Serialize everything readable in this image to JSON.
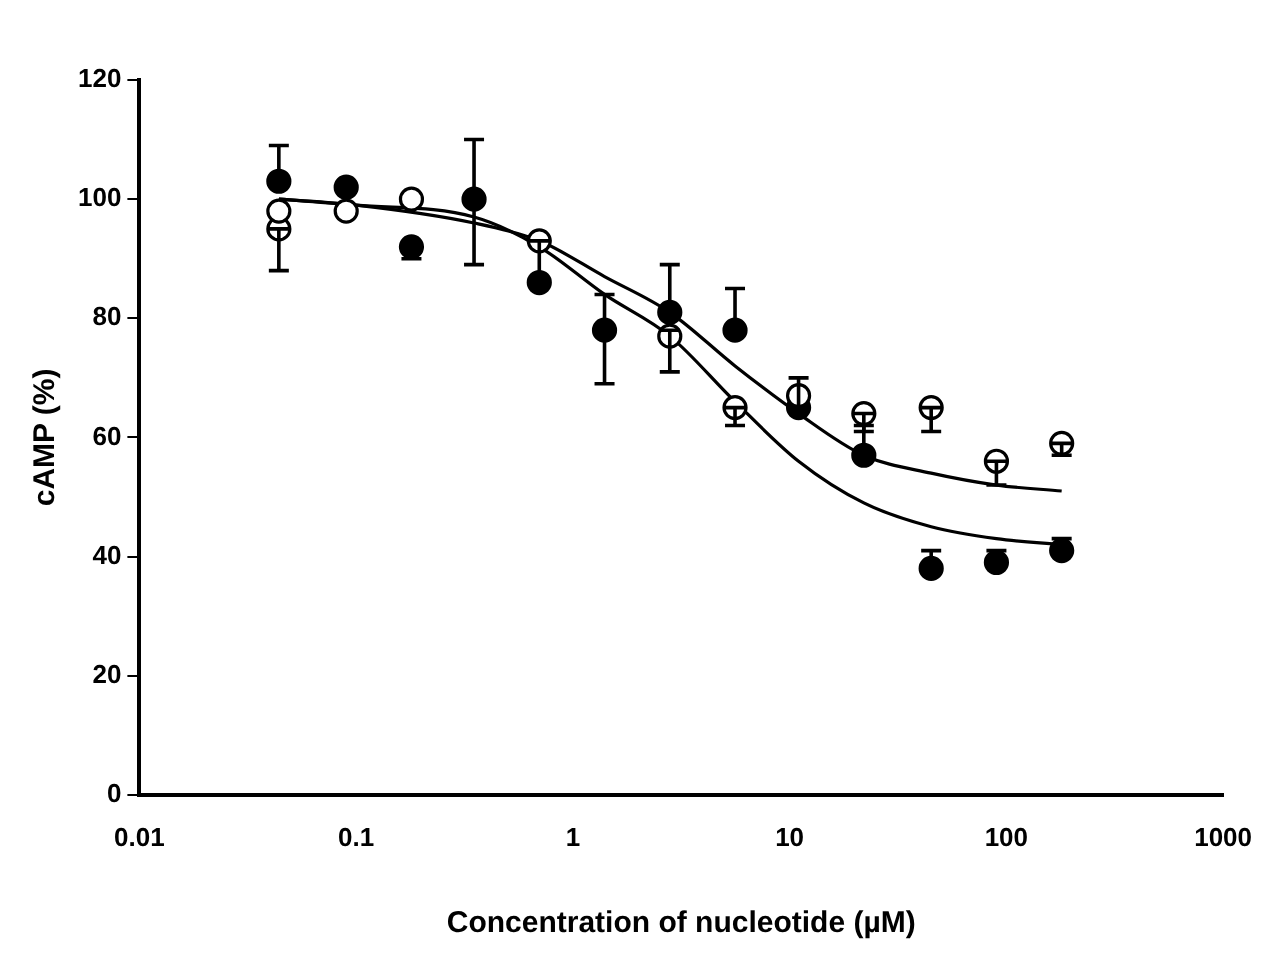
{
  "chart_data": {
    "type": "scatter",
    "xlabel": "Concentration of nucleotide (µM)",
    "ylabel": "cAMP (%)",
    "log": "x",
    "xlim": [
      0.01,
      1000
    ],
    "xticks": [
      0.01,
      0.1,
      1,
      10,
      100,
      1000
    ],
    "ylim": [
      0,
      120
    ],
    "yticks": [
      0,
      20,
      40,
      60,
      80,
      100,
      120
    ],
    "grid": false,
    "legend": false,
    "marker": "circle",
    "series": [
      {
        "type": "line",
        "color": "#000000",
        "marker": "none",
        "x": [
          0.044,
          0.1,
          0.35,
          0.7,
          1.4,
          2.8,
          5.6,
          11,
          22,
          45,
          90,
          180
        ],
        "values": [
          100,
          99,
          96,
          93,
          87,
          81,
          72,
          64,
          57,
          54,
          52,
          51
        ]
      },
      {
        "type": "line",
        "color": "#000000",
        "marker": "none",
        "x": [
          0.044,
          0.1,
          0.35,
          0.7,
          1.4,
          2.8,
          5.6,
          11,
          22,
          45,
          90,
          180
        ],
        "values": [
          100,
          99,
          97,
          92,
          84,
          77,
          66,
          56,
          49,
          45,
          43,
          42
        ]
      },
      {
        "color": "#ffffff",
        "x": [
          0.044,
          0.044,
          0.09,
          0.18,
          0.7,
          2.8,
          5.6,
          11,
          22,
          45,
          90,
          180
        ],
        "values": [
          95,
          98,
          98,
          100,
          93,
          77,
          65,
          67,
          64,
          65,
          56,
          59
        ],
        "errors": [
          [
            88,
            95
          ],
          null,
          null,
          null,
          null,
          [
            71,
            78
          ],
          [
            62,
            65
          ],
          null,
          [
            61,
            64
          ],
          [
            61,
            65
          ],
          [
            52,
            56
          ],
          [
            57,
            59
          ]
        ]
      },
      {
        "color": "#000000",
        "x": [
          0.044,
          0.09,
          0.18,
          0.35,
          0.7,
          1.4,
          2.8,
          5.6,
          11,
          22,
          45,
          90,
          180
        ],
        "values": [
          103,
          102,
          92,
          100,
          86,
          78,
          81,
          78,
          65,
          57,
          38,
          39,
          41
        ],
        "errors": [
          [
            103,
            109
          ],
          null,
          [
            90,
            92
          ],
          [
            89,
            110
          ],
          [
            86,
            93
          ],
          [
            69,
            84
          ],
          [
            80,
            89
          ],
          [
            78,
            85
          ],
          [
            65,
            70
          ],
          [
            57,
            62
          ],
          [
            38,
            41
          ],
          [
            39,
            41
          ],
          [
            41,
            43
          ]
        ]
      }
    ]
  }
}
